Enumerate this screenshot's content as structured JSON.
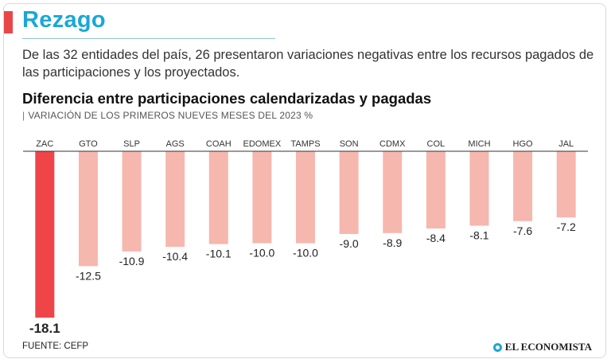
{
  "header": {
    "title": "Rezago",
    "description": "De las 32 entidades del país, 26 presentaron variaciones negativas entre los recursos pagados de las participaciones y los proyectados."
  },
  "chart_data": {
    "type": "bar",
    "title": "Diferencia entre participaciones calendarizadas y pagadas",
    "subtitle": "VARIACIÓN DE LOS PRIMEROS NUEVES MESES DEL 2023 %",
    "categories": [
      "ZAC",
      "GTO",
      "SLP",
      "AGS",
      "COAH",
      "EDOMEX",
      "TAMPS",
      "SON",
      "CDMX",
      "COL",
      "MICH",
      "HGO",
      "JAL"
    ],
    "values": [
      -18.1,
      -12.5,
      -10.9,
      -10.4,
      -10.1,
      -10.0,
      -10.0,
      -9.0,
      -8.9,
      -8.4,
      -8.1,
      -7.6,
      -7.2
    ],
    "value_labels": [
      "-18.1",
      "-12.5",
      "-10.9",
      "-10.4",
      "-10.1",
      "-10.0",
      "-10.0",
      "-9.0",
      "-8.9",
      "-8.4",
      "-8.1",
      "-7.6",
      "-7.2"
    ],
    "ylim": [
      -18.1,
      0
    ],
    "colors": {
      "highlight": "#ef4548",
      "bar": "#f6b7ae",
      "axis": "#333333"
    }
  },
  "footer": {
    "source": "FUENTE: CEFP",
    "brand": "EL ECONOMISTA",
    "brand_icon": "globe-icon"
  }
}
